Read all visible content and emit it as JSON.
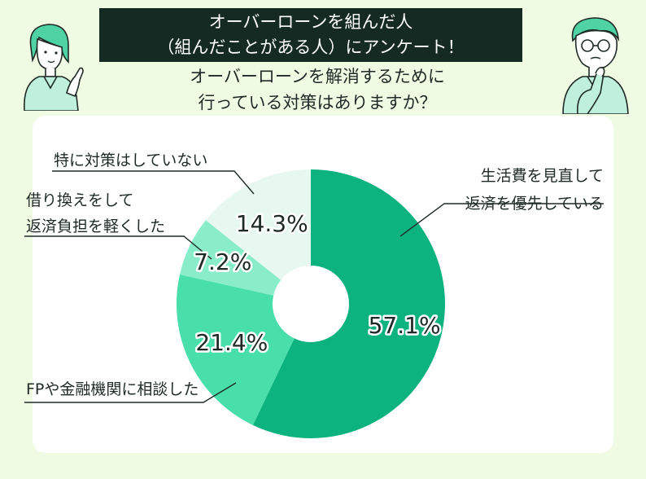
{
  "header": {
    "banner_line1": "オーバーローンを組んだ人",
    "banner_line2": "（組んだことがある人）にアンケート！",
    "question_line1": "オーバーローンを解消するために",
    "question_line2": "行っている対策はありますか？"
  },
  "chart_data": {
    "type": "pie",
    "donut": true,
    "unit": "%",
    "categories": [
      "生活費を見直して返済を優先している",
      "FPや金融機関に相談した",
      "借り換えをして返済負担を軽くした",
      "特に対策はしていない"
    ],
    "values": [
      57.1,
      21.4,
      7.2,
      14.3
    ],
    "value_labels": [
      "57.1%",
      "21.4%",
      "7.2%",
      "14.3%"
    ],
    "legend_labels": [
      [
        "生活費を見直して",
        "返済を優先している"
      ],
      [
        "FPや金融機関に相談した"
      ],
      [
        "借り換えをして",
        "返済負担を軽くした"
      ],
      [
        "特に対策はしていない"
      ]
    ],
    "colors": [
      "#0db37f",
      "#48dfab",
      "#8aedc9",
      "#e7f8f1"
    ],
    "start": "12 o'clock",
    "direction": "clockwise",
    "legend": "callout labels"
  },
  "illustrations": {
    "left": "woman-pointing-icon",
    "right": "thinking-man-icon"
  }
}
